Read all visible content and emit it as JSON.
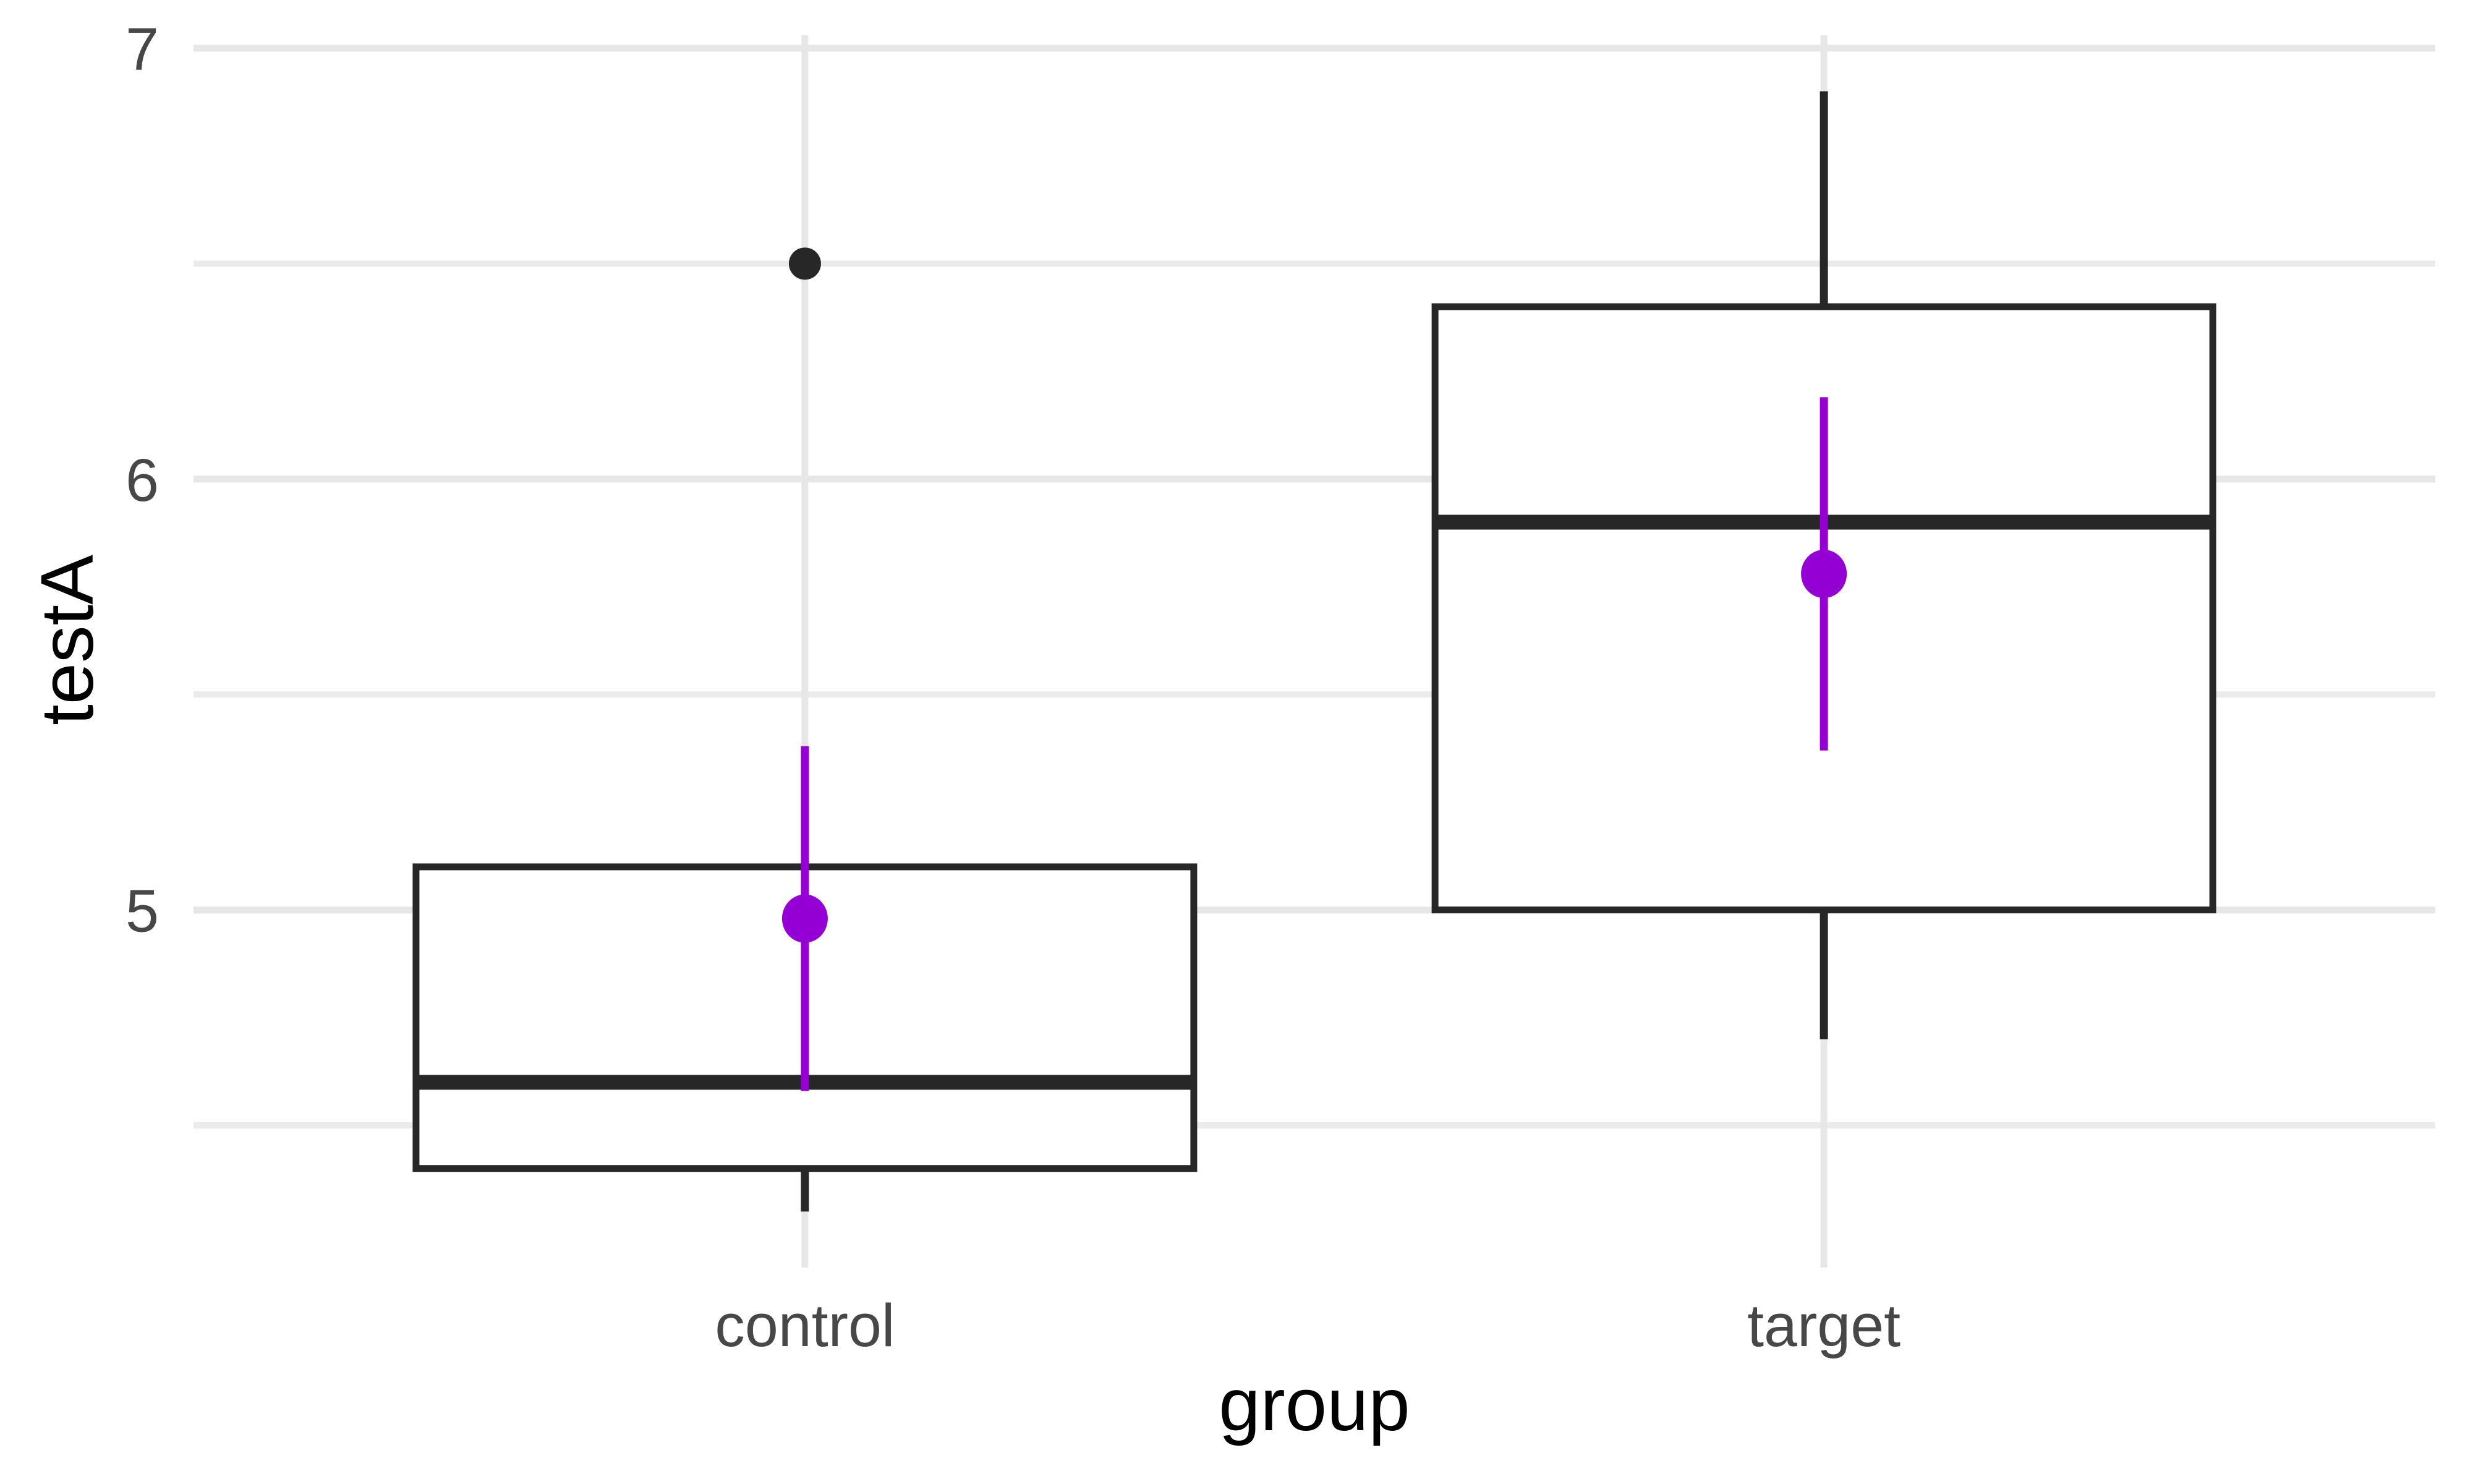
{
  "chart_data": {
    "type": "boxplot",
    "title": "",
    "xlabel": "group",
    "ylabel": "testA",
    "categories": [
      "control",
      "target"
    ],
    "y_axis": {
      "tick_labels": [
        "5",
        "6",
        "7"
      ],
      "ticks": [
        5,
        6,
        7
      ],
      "minor_ticks": [
        4.5,
        5.5,
        6.5
      ],
      "ylim": [
        4.17,
        7.03
      ]
    },
    "grid": "major-and-minor, light gray on white, no axis lines, no axis tick marks",
    "legend": "none",
    "series": [
      {
        "category": "control",
        "q1": 4.4,
        "median": 4.6,
        "q3": 5.1,
        "whisker_low": 4.3,
        "whisker_high": 5.1,
        "outliers": [
          6.5
        ],
        "mean": 4.98,
        "mean_range_low": 4.58,
        "mean_range_high": 5.38
      },
      {
        "category": "target",
        "q1": 5.0,
        "median": 5.9,
        "q3": 6.4,
        "whisker_low": 4.7,
        "whisker_high": 6.9,
        "outliers": [],
        "mean": 5.78,
        "mean_range_low": 5.37,
        "mean_range_high": 6.19
      }
    ],
    "colors": {
      "box_stroke": "#272727",
      "box_fill": "#ffffff",
      "median": "#272727",
      "outlier": "#272727",
      "mean_point": "#9400d3",
      "grid_major": "#e7e7e7",
      "grid_minor": "#ebebeb",
      "tick_label": "#474747",
      "axis_title": "#000000",
      "background": "#ffffff"
    }
  }
}
